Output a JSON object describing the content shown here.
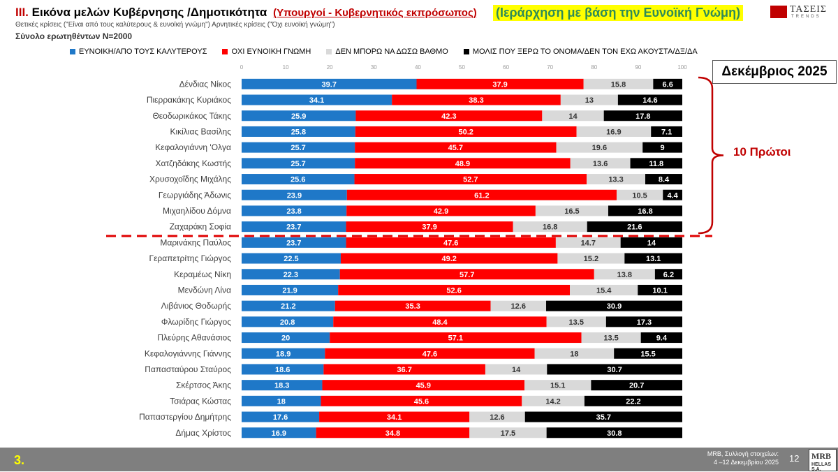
{
  "header": {
    "roman": "III.",
    "title": "Εικόνα μελών Κυβέρνησης /Δημοτικότητα",
    "subtitle": "(Υπουργοί - Κυβερνητικός εκπρόσωπος)",
    "highlight": "(Ιεράρχηση με βάση την Ευνοϊκή Γνώμη)",
    "note": "Θετικές κρίσεις (\"Είναι από τους καλύτερους & ευνοϊκή γνώμη\") Αρνητικές κρίσεις (\"Όχι ευνοϊκή γνώμη\")",
    "sample": "Σύνολο ερωτηθέντων Ν=2000",
    "month_badge": "Δεκέμβριος 2025",
    "top10_label": "10 Πρώτοι"
  },
  "logo": {
    "name": "ΤΑΣΕΙΣ",
    "tag": "TRENDS"
  },
  "footer": {
    "slide_number": "3.",
    "source_line1": "MRB, Συλλογή στοιχείων:",
    "source_line2": "4 –12 Δεκεμβρίου 2025",
    "page": "12",
    "logo_main": "MRB",
    "logo_sub": "HELLAS S.A."
  },
  "colors": {
    "favorable": "#1f78c8",
    "unfavorable": "#ff0000",
    "cannot_rate": "#d9d9d9",
    "unknown": "#000000",
    "accent_red": "#c00000"
  },
  "chart_data": {
    "type": "bar",
    "orientation": "horizontal",
    "stacked": true,
    "xlim": [
      0,
      100
    ],
    "xticks": [
      0,
      10,
      20,
      30,
      40,
      50,
      60,
      70,
      80,
      90,
      100
    ],
    "legend_position": "top",
    "categories": [
      "Δένδιας Νίκος",
      "Πιερρακάκης Κυριάκος",
      "Θεοδωρικάκος Τάκης",
      "Κικίλιας Βασίλης",
      "Κεφαλογιάννη 'Ολγα",
      "Χατζηδάκης Κωστής",
      "Χρυσοχοΐδης Μιχάλης",
      "Γεωργιάδης Άδωνις",
      "Μιχαηλίδου Δόμνα",
      "Ζαχαράκη Σοφία",
      "Μαρινάκης Παύλος",
      "Γεραπετρίτης Γιώργος",
      "Κεραμέως Νίκη",
      "Μενδώνη Λίνα",
      "Λιβάνιος Θοδωρής",
      "Φλωρίδης Γιώργος",
      "Πλεύρης Αθανάσιος",
      "Κεφαλογιάννης Γιάννης",
      "Παπασταύρου Σταύρος",
      "Σκέρτσος Άκης",
      "Τσιάρας Κώστας",
      "Παπαστεργίου Δημήτρης",
      "Δήμας Χρίστος"
    ],
    "series": [
      {
        "name": "ΕΥΝΟΙΚΗ/ΑΠΟ ΤΟΥΣ ΚΑΛΥΤΕΡΟΥΣ",
        "color": "#1f78c8",
        "label_color": "#ffffff",
        "values": [
          39.7,
          34.1,
          25.9,
          25.8,
          25.7,
          25.7,
          25.6,
          23.9,
          23.8,
          23.7,
          23.7,
          22.5,
          22.3,
          21.9,
          21.2,
          20.8,
          20,
          18.9,
          18.6,
          18.3,
          18,
          17.6,
          16.9
        ]
      },
      {
        "name": "ΟΧΙ ΕΥΝΟΙΚΗ ΓΝΩΜΗ",
        "color": "#ff0000",
        "label_color": "#ffffff",
        "values": [
          37.9,
          38.3,
          42.3,
          50.2,
          45.7,
          48.9,
          52.7,
          61.2,
          42.9,
          37.9,
          47.6,
          49.2,
          57.7,
          52.6,
          35.3,
          48.4,
          57.1,
          47.6,
          36.7,
          45.9,
          45.6,
          34.1,
          34.8
        ]
      },
      {
        "name": "ΔΕΝ ΜΠΟΡΩ ΝΑ ΔΩΣΩ ΒΑΘΜΟ",
        "color": "#d9d9d9",
        "label_color": "#333333",
        "values": [
          15.8,
          13,
          14,
          16.9,
          19.6,
          13.6,
          13.3,
          10.5,
          16.5,
          16.8,
          14.7,
          15.2,
          13.8,
          15.4,
          12.6,
          13.5,
          13.5,
          18,
          14,
          15.1,
          14.2,
          12.6,
          17.5
        ]
      },
      {
        "name": "ΜΟΛΙΣ ΠΟΥ ΞΕΡΩ ΤΟ ΟΝΟΜΑ/ΔΕΝ ΤΟΝ ΕΧΩ ΑΚΟΥΣΤΑ/ΔΞ/ΔΑ",
        "color": "#000000",
        "label_color": "#ffffff",
        "values": [
          6.6,
          14.6,
          17.8,
          7.1,
          9,
          11.8,
          8.4,
          4.4,
          16.8,
          21.6,
          14,
          13.1,
          6.2,
          10.1,
          30.9,
          17.3,
          9.4,
          15.5,
          30.7,
          20.7,
          22.2,
          35.7,
          30.8
        ]
      }
    ],
    "top_group_size": 10
  }
}
